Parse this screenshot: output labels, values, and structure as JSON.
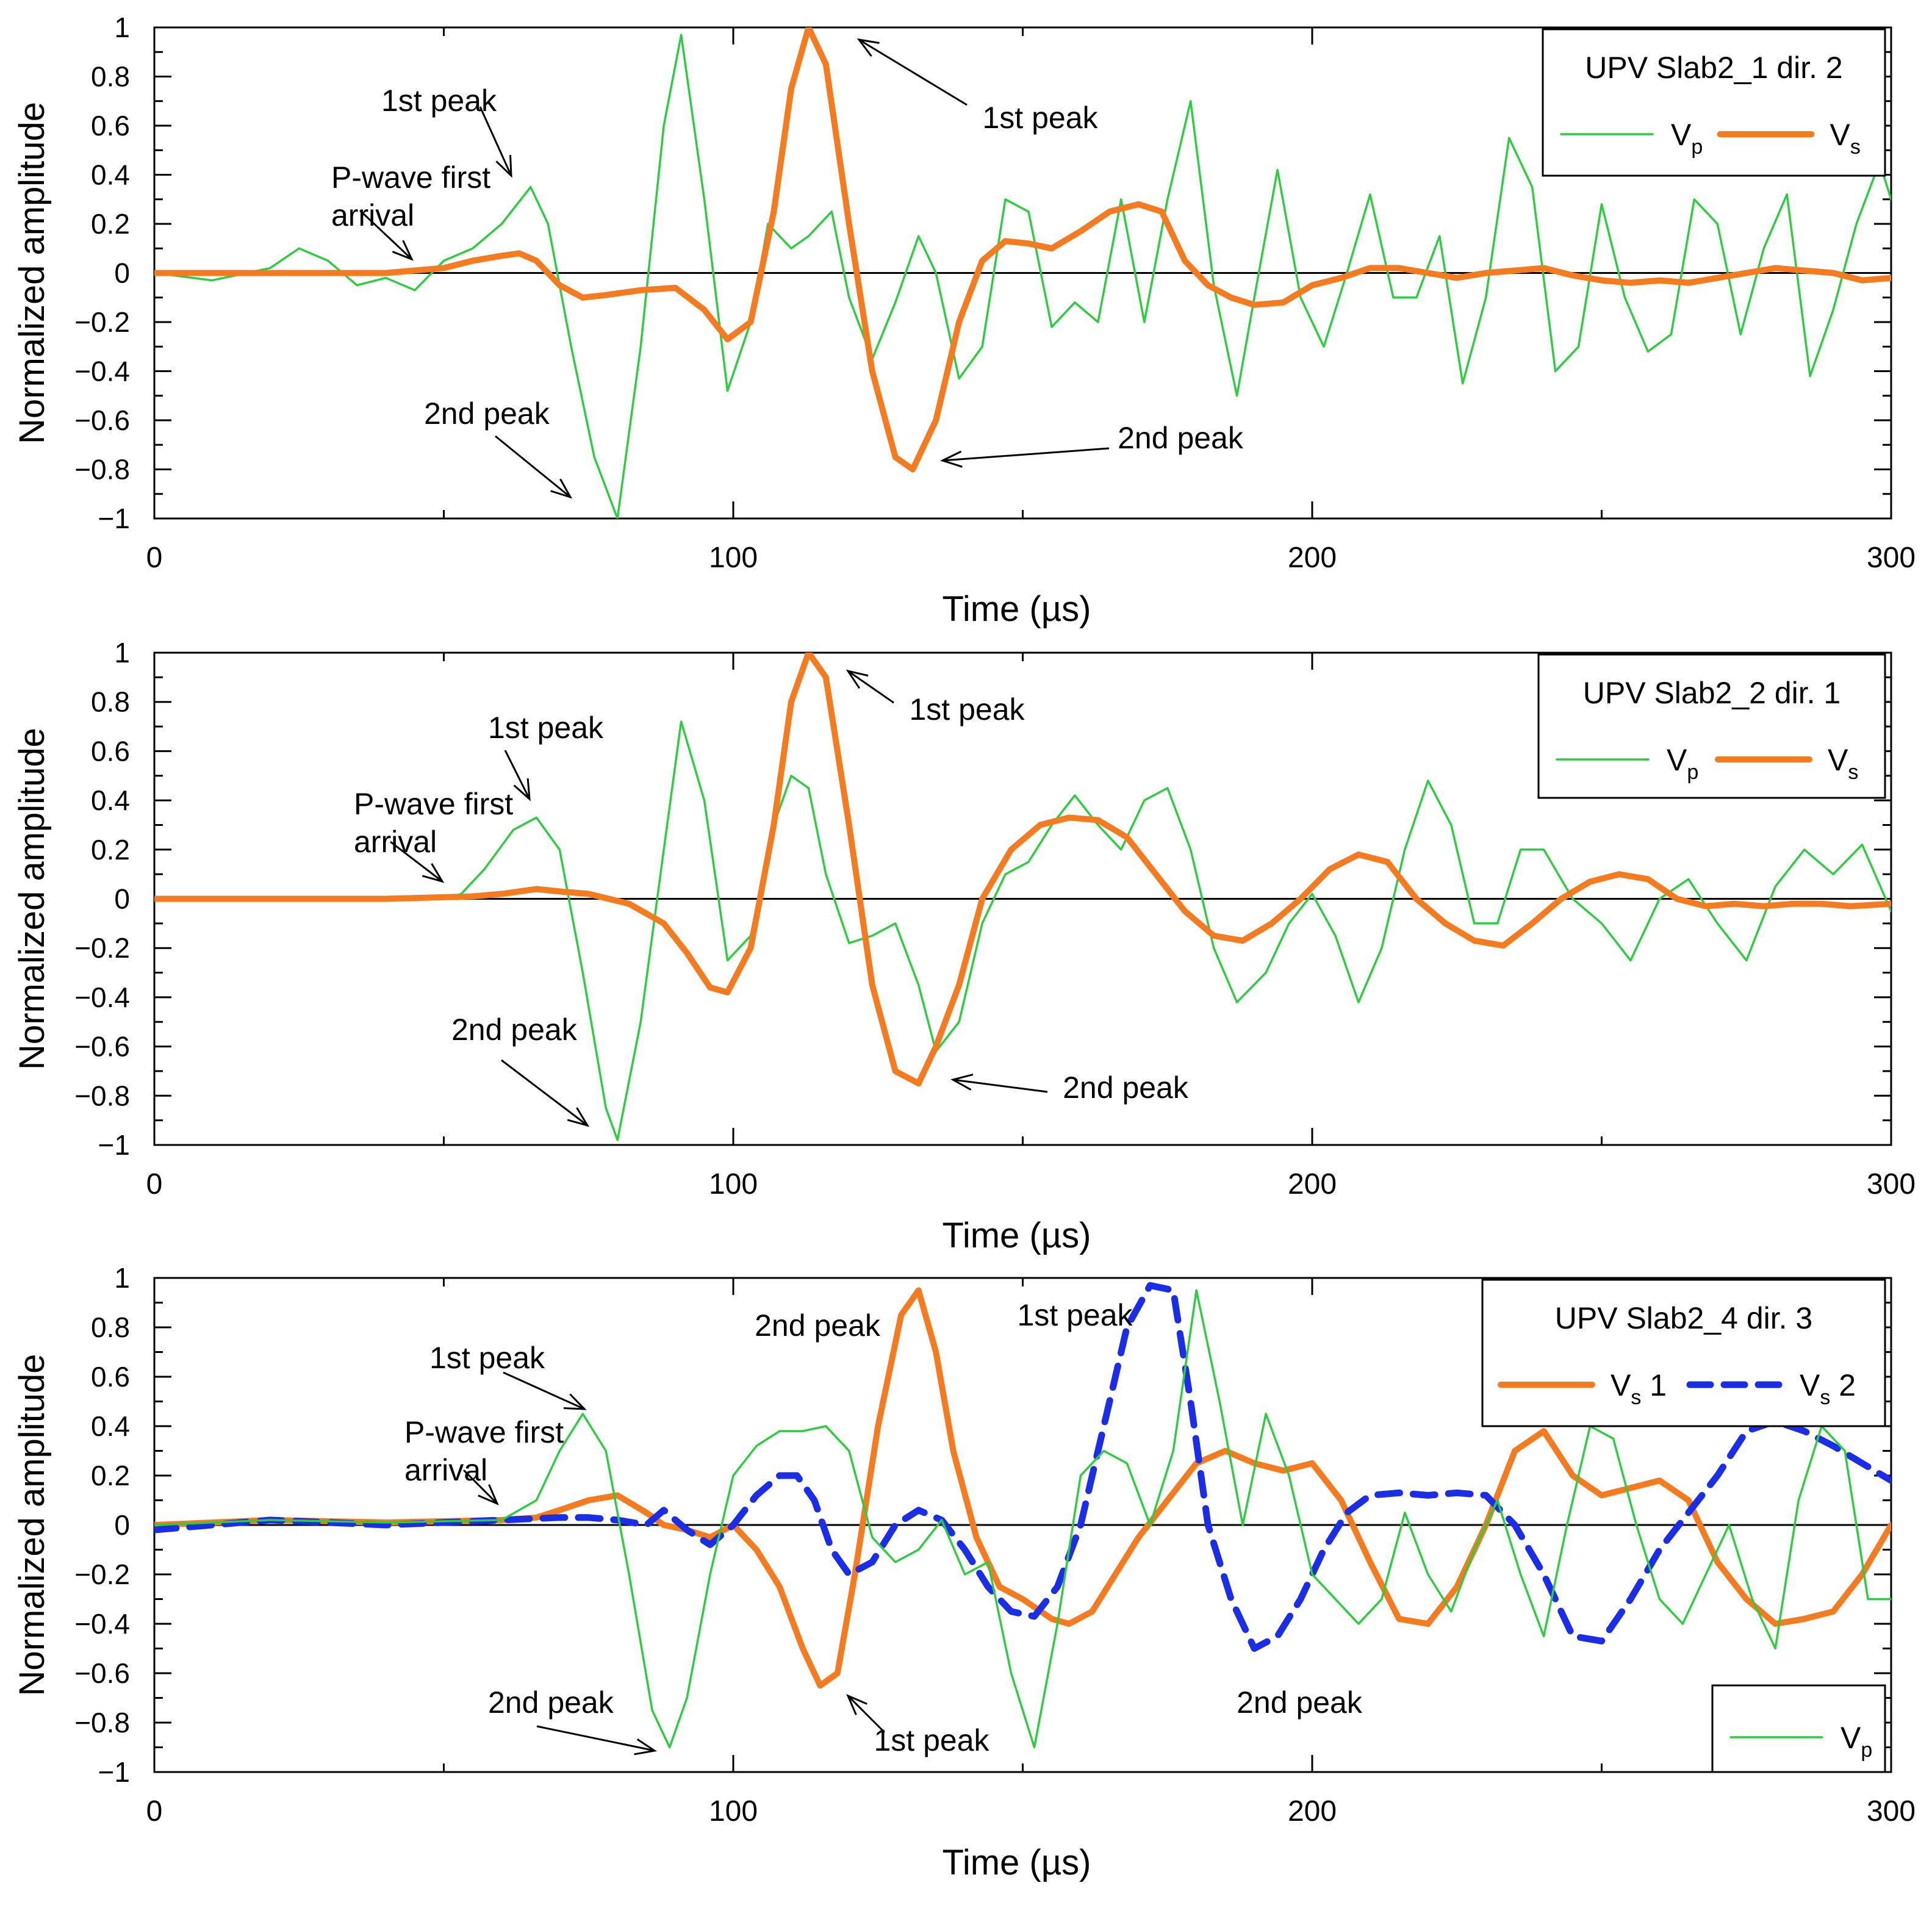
{
  "chart_data": [
    {
      "type": "line",
      "title": "",
      "xlabel": "Time (µs)",
      "ylabel": "Normalized amplitude",
      "xlim": [
        0,
        300
      ],
      "ylim": [
        -1,
        1
      ],
      "xticks": [
        0,
        100,
        200,
        300
      ],
      "yticks": [
        -1,
        -0.8,
        -0.6,
        -0.4,
        -0.2,
        0,
        0.2,
        0.4,
        0.6,
        0.8,
        1
      ],
      "legend_title": "UPV Slab2_1 dir. 2",
      "series": [
        {
          "name": "Vp",
          "legend_main": "V",
          "legend_sub": "p",
          "legend_suffix": "",
          "color": "#2ecc40",
          "style": "thin",
          "x": [
            0,
            10,
            20,
            25,
            30,
            35,
            40,
            45,
            50,
            55,
            60,
            65,
            68,
            72,
            76,
            80,
            84,
            88,
            91,
            95,
            99,
            103,
            106,
            110,
            113,
            117,
            120,
            124,
            128,
            132,
            135,
            139,
            143,
            147,
            151,
            155,
            159,
            163,
            167,
            171,
            175,
            179,
            183,
            187,
            190,
            194,
            198,
            202,
            206,
            210,
            214,
            218,
            222,
            226,
            230,
            234,
            238,
            242,
            246,
            250,
            254,
            258,
            262,
            266,
            270,
            274,
            278,
            282,
            286,
            290,
            294,
            298,
            300
          ],
          "y": [
            0,
            -0.03,
            0.02,
            0.1,
            0.05,
            -0.05,
            -0.02,
            -0.07,
            0.05,
            0.1,
            0.2,
            0.35,
            0.2,
            -0.3,
            -0.75,
            -1.0,
            -0.3,
            0.6,
            0.97,
            0.3,
            -0.48,
            -0.2,
            0.2,
            0.1,
            0.15,
            0.25,
            -0.1,
            -0.35,
            -0.12,
            0.15,
            0.0,
            -0.43,
            -0.3,
            0.3,
            0.25,
            -0.22,
            -0.12,
            -0.2,
            0.3,
            -0.2,
            0.3,
            0.7,
            -0.05,
            -0.5,
            -0.1,
            0.42,
            -0.1,
            -0.3,
            0.0,
            0.32,
            -0.1,
            -0.1,
            0.15,
            -0.45,
            -0.1,
            0.55,
            0.35,
            -0.4,
            -0.3,
            0.28,
            -0.1,
            -0.32,
            -0.25,
            0.3,
            0.2,
            -0.25,
            0.1,
            0.32,
            -0.42,
            -0.15,
            0.2,
            0.45,
            0.3
          ]
        },
        {
          "name": "Vs",
          "legend_main": "V",
          "legend_sub": "s",
          "legend_suffix": "",
          "color": "#f47b20",
          "style": "thick",
          "x": [
            0,
            20,
            40,
            50,
            55,
            60,
            63,
            66,
            70,
            74,
            78,
            84,
            90,
            95,
            99,
            103,
            107,
            110,
            113,
            116,
            120,
            124,
            128,
            131,
            135,
            139,
            143,
            147,
            151,
            155,
            160,
            165,
            170,
            174,
            178,
            182,
            186,
            190,
            195,
            200,
            205,
            210,
            215,
            220,
            225,
            230,
            235,
            240,
            245,
            250,
            255,
            260,
            265,
            270,
            275,
            280,
            285,
            290,
            295,
            300
          ],
          "y": [
            0,
            0,
            0,
            0.02,
            0.05,
            0.07,
            0.08,
            0.05,
            -0.05,
            -0.1,
            -0.09,
            -0.07,
            -0.06,
            -0.15,
            -0.27,
            -0.2,
            0.25,
            0.75,
            1.0,
            0.85,
            0.2,
            -0.4,
            -0.75,
            -0.8,
            -0.6,
            -0.2,
            0.05,
            0.13,
            0.12,
            0.1,
            0.17,
            0.25,
            0.28,
            0.25,
            0.05,
            -0.05,
            -0.1,
            -0.13,
            -0.12,
            -0.05,
            -0.02,
            0.02,
            0.02,
            0.0,
            -0.02,
            0.0,
            0.01,
            0.02,
            -0.01,
            -0.03,
            -0.04,
            -0.03,
            -0.04,
            -0.02,
            0.0,
            0.02,
            0.01,
            0.0,
            -0.03,
            -0.02
          ]
        }
      ],
      "annotations": [
        {
          "text": "1st peak"
        },
        {
          "lines": [
            "P-wave first",
            "arrival"
          ]
        },
        {
          "text": "2nd peak"
        },
        {
          "text": "1st peak"
        },
        {
          "text": "2nd peak"
        }
      ]
    },
    {
      "type": "line",
      "title": "",
      "xlabel": "Time (µs)",
      "ylabel": "Normalized amplitude",
      "xlim": [
        0,
        300
      ],
      "ylim": [
        -1,
        1
      ],
      "xticks": [
        0,
        100,
        200,
        300
      ],
      "yticks": [
        -1,
        -0.8,
        -0.6,
        -0.4,
        -0.2,
        0,
        0.2,
        0.4,
        0.6,
        0.8,
        1
      ],
      "legend_title": "UPV Slab2_2 dir. 1",
      "series": [
        {
          "name": "Vp",
          "legend_main": "V",
          "legend_sub": "p",
          "legend_suffix": "",
          "color": "#2ecc40",
          "style": "thin",
          "x": [
            0,
            20,
            40,
            50,
            53,
            57,
            62,
            66,
            70,
            74,
            78,
            80,
            84,
            88,
            91,
            95,
            99,
            103,
            107,
            110,
            113,
            116,
            120,
            124,
            128,
            132,
            135,
            139,
            143,
            147,
            151,
            155,
            159,
            163,
            167,
            171,
            175,
            179,
            183,
            187,
            192,
            196,
            200,
            204,
            208,
            212,
            216,
            220,
            224,
            228,
            232,
            236,
            240,
            245,
            250,
            255,
            260,
            265,
            270,
            275,
            280,
            285,
            290,
            295,
            300
          ],
          "y": [
            0,
            0,
            0,
            0,
            0.02,
            0.12,
            0.28,
            0.33,
            0.2,
            -0.3,
            -0.85,
            -0.98,
            -0.5,
            0.2,
            0.72,
            0.4,
            -0.25,
            -0.15,
            0.3,
            0.5,
            0.45,
            0.1,
            -0.18,
            -0.15,
            -0.1,
            -0.35,
            -0.62,
            -0.5,
            -0.1,
            0.1,
            0.15,
            0.3,
            0.42,
            0.3,
            0.2,
            0.4,
            0.45,
            0.2,
            -0.2,
            -0.42,
            -0.3,
            -0.1,
            0.02,
            -0.15,
            -0.42,
            -0.2,
            0.2,
            0.48,
            0.3,
            -0.1,
            -0.1,
            0.2,
            0.2,
            0.0,
            -0.1,
            -0.25,
            0.0,
            0.08,
            -0.1,
            -0.25,
            0.05,
            0.2,
            0.1,
            0.22,
            -0.05
          ]
        },
        {
          "name": "Vs",
          "legend_main": "V",
          "legend_sub": "s",
          "legend_suffix": "",
          "color": "#f47b20",
          "style": "thick",
          "x": [
            0,
            20,
            40,
            55,
            60,
            66,
            70,
            75,
            82,
            88,
            92,
            96,
            99,
            103,
            107,
            110,
            113,
            116,
            120,
            124,
            128,
            132,
            135,
            139,
            143,
            148,
            153,
            158,
            163,
            168,
            173,
            178,
            183,
            188,
            193,
            198,
            203,
            208,
            213,
            218,
            223,
            228,
            233,
            238,
            243,
            248,
            253,
            258,
            263,
            268,
            273,
            278,
            283,
            288,
            293,
            300
          ],
          "y": [
            0,
            0,
            0,
            0.01,
            0.02,
            0.04,
            0.03,
            0.02,
            -0.02,
            -0.1,
            -0.22,
            -0.36,
            -0.38,
            -0.2,
            0.3,
            0.8,
            1.0,
            0.9,
            0.3,
            -0.35,
            -0.7,
            -0.75,
            -0.6,
            -0.35,
            0.0,
            0.2,
            0.3,
            0.33,
            0.32,
            0.25,
            0.1,
            -0.05,
            -0.15,
            -0.17,
            -0.1,
            0.0,
            0.12,
            0.18,
            0.15,
            0.0,
            -0.1,
            -0.17,
            -0.19,
            -0.1,
            0.0,
            0.07,
            0.1,
            0.08,
            0.0,
            -0.03,
            -0.02,
            -0.03,
            -0.02,
            -0.02,
            -0.03,
            -0.02
          ]
        }
      ],
      "annotations": [
        {
          "text": "1st peak"
        },
        {
          "lines": [
            "P-wave first",
            "arrival"
          ]
        },
        {
          "text": "2nd peak"
        },
        {
          "text": "1st peak"
        },
        {
          "text": "2nd peak"
        }
      ]
    },
    {
      "type": "line",
      "title": "",
      "xlabel": "Time (µs)",
      "ylabel": "Normalized amplitude",
      "xlim": [
        0,
        300
      ],
      "ylim": [
        -1,
        1
      ],
      "xticks": [
        0,
        100,
        200,
        300
      ],
      "yticks": [
        -1,
        -0.8,
        -0.6,
        -0.4,
        -0.2,
        0,
        0.2,
        0.4,
        0.6,
        0.8,
        1
      ],
      "legend_title": "UPV Slab2_4 dir. 3",
      "series": [
        {
          "name": "Vs 1",
          "legend_main": "V",
          "legend_sub": "s",
          "legend_suffix": " 1",
          "color": "#f47b20",
          "style": "thick",
          "x": [
            0,
            20,
            40,
            60,
            66,
            70,
            75,
            80,
            85,
            88,
            92,
            96,
            100,
            104,
            108,
            112,
            115,
            118,
            121,
            125,
            129,
            132,
            135,
            138,
            142,
            146,
            150,
            155,
            158,
            162,
            166,
            170,
            175,
            180,
            185,
            190,
            195,
            200,
            205,
            210,
            215,
            220,
            225,
            230,
            235,
            240,
            245,
            250,
            255,
            260,
            265,
            270,
            275,
            280,
            285,
            290,
            295,
            300
          ],
          "y": [
            0,
            0.02,
            0.01,
            0.02,
            0.03,
            0.06,
            0.1,
            0.12,
            0.05,
            0.0,
            -0.02,
            -0.05,
            0.0,
            -0.1,
            -0.25,
            -0.5,
            -0.65,
            -0.6,
            -0.2,
            0.4,
            0.85,
            0.95,
            0.7,
            0.3,
            -0.05,
            -0.25,
            -0.3,
            -0.38,
            -0.4,
            -0.35,
            -0.2,
            -0.05,
            0.1,
            0.25,
            0.3,
            0.25,
            0.22,
            0.25,
            0.1,
            -0.15,
            -0.38,
            -0.4,
            -0.25,
            0.0,
            0.3,
            0.38,
            0.2,
            0.12,
            0.15,
            0.18,
            0.1,
            -0.15,
            -0.3,
            -0.4,
            -0.38,
            -0.35,
            -0.2,
            0.0
          ]
        },
        {
          "name": "Vs 2",
          "legend_main": "V",
          "legend_sub": "s",
          "legend_suffix": " 2",
          "color": "#1a2ee8",
          "style": "dashed",
          "x": [
            0,
            20,
            40,
            60,
            70,
            75,
            80,
            85,
            88,
            92,
            96,
            100,
            104,
            108,
            111,
            114,
            117,
            120,
            124,
            128,
            132,
            136,
            140,
            144,
            148,
            152,
            156,
            160,
            164,
            168,
            172,
            176,
            179,
            182,
            186,
            190,
            194,
            198,
            202,
            206,
            210,
            215,
            220,
            225,
            230,
            235,
            240,
            245,
            250,
            255,
            260,
            265,
            270,
            275,
            280,
            285,
            290,
            295,
            300
          ],
          "y": [
            -0.02,
            0.02,
            0.0,
            0.02,
            0.03,
            0.03,
            0.02,
            0.0,
            0.06,
            -0.02,
            -0.08,
            0.0,
            0.12,
            0.2,
            0.2,
            0.1,
            -0.1,
            -0.2,
            -0.15,
            0.0,
            0.06,
            0.02,
            -0.1,
            -0.25,
            -0.35,
            -0.37,
            -0.25,
            0.0,
            0.4,
            0.8,
            0.97,
            0.95,
            0.5,
            0.0,
            -0.3,
            -0.5,
            -0.45,
            -0.3,
            -0.1,
            0.05,
            0.12,
            0.13,
            0.12,
            0.13,
            0.12,
            0.0,
            -0.2,
            -0.45,
            -0.47,
            -0.3,
            -0.1,
            0.05,
            0.2,
            0.38,
            0.42,
            0.38,
            0.32,
            0.25,
            0.18
          ]
        },
        {
          "name": "Vp",
          "legend_main": "V",
          "legend_sub": "p",
          "legend_suffix": "",
          "color": "#2ecc40",
          "style": "thin",
          "x": [
            0,
            20,
            40,
            60,
            66,
            70,
            74,
            78,
            82,
            86,
            89,
            92,
            96,
            100,
            104,
            108,
            112,
            116,
            120,
            124,
            128,
            132,
            136,
            140,
            144,
            148,
            152,
            156,
            160,
            164,
            168,
            172,
            176,
            180,
            184,
            188,
            192,
            196,
            200,
            204,
            208,
            212,
            216,
            220,
            224,
            228,
            232,
            236,
            240,
            244,
            248,
            252,
            256,
            260,
            264,
            268,
            272,
            276,
            280,
            284,
            288,
            292,
            296,
            300
          ],
          "y": [
            0,
            0.02,
            0.01,
            0.02,
            0.1,
            0.3,
            0.45,
            0.3,
            -0.2,
            -0.75,
            -0.9,
            -0.7,
            -0.2,
            0.2,
            0.32,
            0.38,
            0.38,
            0.4,
            0.3,
            -0.05,
            -0.15,
            -0.1,
            0.02,
            -0.2,
            -0.15,
            -0.6,
            -0.9,
            -0.4,
            0.2,
            0.3,
            0.25,
            0.0,
            0.3,
            0.95,
            0.5,
            0.0,
            0.45,
            0.2,
            -0.2,
            -0.3,
            -0.4,
            -0.3,
            0.05,
            -0.2,
            -0.35,
            -0.1,
            0.1,
            -0.2,
            -0.45,
            0.0,
            0.4,
            0.35,
            0.0,
            -0.3,
            -0.4,
            -0.2,
            0.0,
            -0.3,
            -0.5,
            0.1,
            0.4,
            0.3,
            -0.3,
            -0.3
          ]
        }
      ],
      "second_legend_items": [
        "Vp"
      ],
      "annotations": [
        {
          "text": "1st peak"
        },
        {
          "lines": [
            "P-wave first",
            "arrival"
          ]
        },
        {
          "text": "2nd peak"
        },
        {
          "text": "2nd peak"
        },
        {
          "text": "1st peak"
        },
        {
          "text": "1st peak"
        },
        {
          "text": "2nd peak"
        }
      ]
    }
  ]
}
